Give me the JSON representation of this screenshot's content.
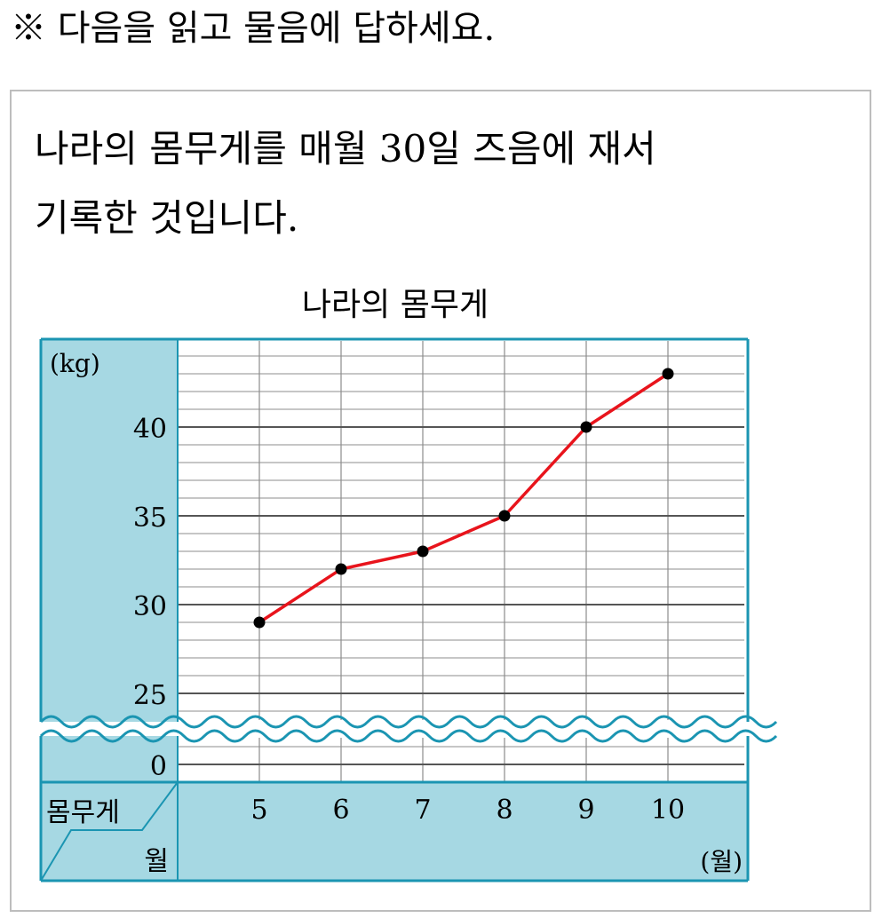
{
  "instruction": "※ 다음을 읽고 물음에 답하세요.",
  "description": {
    "line1": "나라의 몸무게를 매월 30일 즈음에 재서",
    "line2": "기록한 것입니다."
  },
  "chart_data": {
    "type": "line",
    "title": "나라의 몸무게",
    "y_unit_label": "(kg)",
    "x_unit_label": "(월)",
    "corner_header": {
      "top": "몸무게",
      "bottom": "월"
    },
    "categories": [
      "5",
      "6",
      "7",
      "8",
      "9",
      "10"
    ],
    "series": [
      {
        "values": [
          29,
          32,
          33,
          35,
          40,
          43
        ]
      }
    ],
    "y_tick_labels": [
      "40",
      "35",
      "30",
      "25",
      "0"
    ],
    "y_ticks": [
      40,
      35,
      30,
      25
    ],
    "y_zero_label": "0",
    "ylim": [
      24,
      45
    ],
    "y_axis_broken": true,
    "grid": true,
    "colors": {
      "line": "#e8141c",
      "marker": "#000000",
      "panel": "#a6d8e3",
      "border": "#1b95b2",
      "grid": "#8c8c8c",
      "major_grid": "#555555"
    }
  }
}
